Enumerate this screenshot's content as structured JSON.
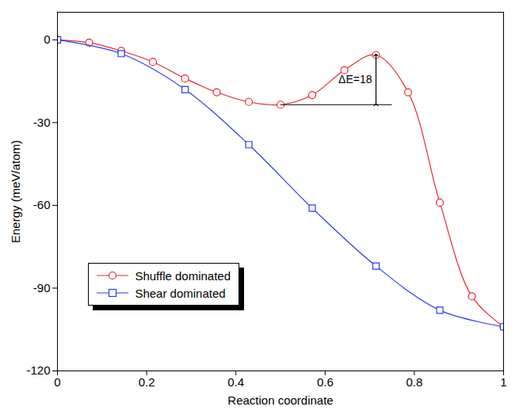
{
  "chart_data": {
    "type": "line",
    "x_label": "Reaction coordinate",
    "y_label": "Energy (meV/atom)",
    "xlim": [
      0,
      1
    ],
    "ylim": [
      -120,
      10
    ],
    "xticks": [
      0,
      0.2,
      0.4,
      0.6,
      0.8,
      1
    ],
    "yticks": [
      -120,
      -90,
      -60,
      -30,
      0
    ],
    "legend": "lower left",
    "series": [
      {
        "name": "Shuffle dominated",
        "color": "#e8262a",
        "marker": "circle",
        "line_style": "solid",
        "x": [
          0,
          0.071,
          0.143,
          0.214,
          0.286,
          0.357,
          0.429,
          0.5,
          0.571,
          0.643,
          0.714,
          0.786,
          0.857,
          0.929,
          1
        ],
        "values": [
          0,
          -1,
          -4,
          -8,
          -14,
          -19,
          -22.5,
          -23.5,
          -20,
          -11,
          -5.5,
          -19,
          -59,
          -93,
          -104
        ]
      },
      {
        "name": "Shear dominated",
        "color": "#2a3ee8",
        "marker": "square",
        "line_style": "solid",
        "x": [
          0,
          0.143,
          0.286,
          0.429,
          0.571,
          0.714,
          0.857,
          1
        ],
        "values": [
          0,
          -5,
          -18,
          -38,
          -61,
          -82,
          -98,
          -104
        ]
      }
    ],
    "annotations": [
      {
        "text": "ΔE=18",
        "x": 0.714,
        "y_from": -23.5,
        "y_to": -5.5,
        "x_from": 0.5
      }
    ]
  }
}
